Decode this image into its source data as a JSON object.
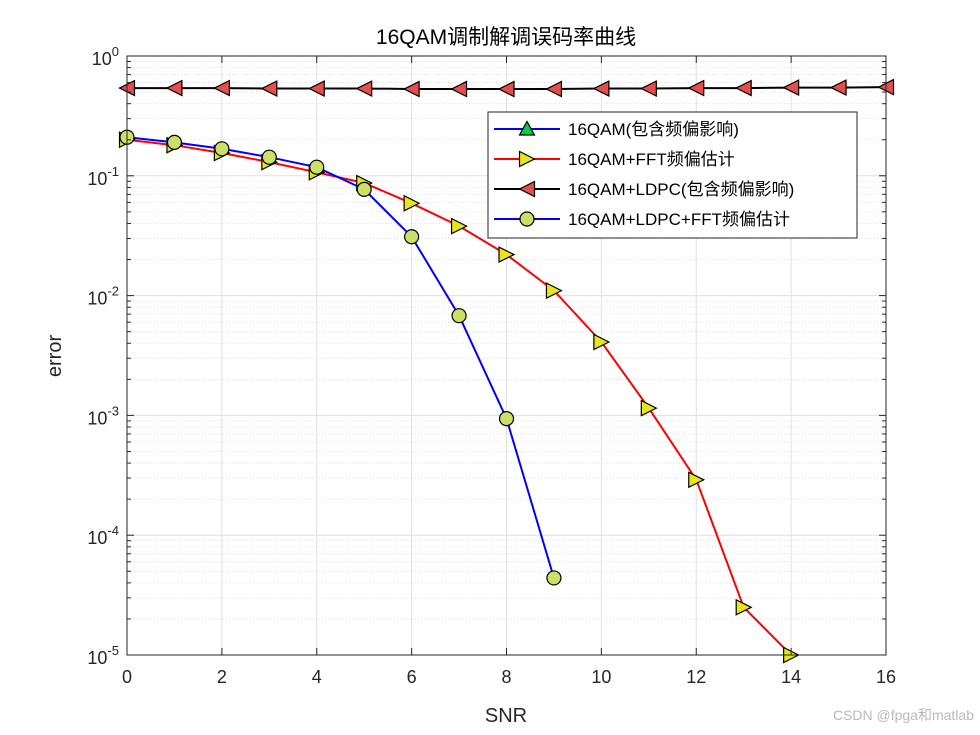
{
  "chart_data": {
    "type": "line",
    "title": "16QAM调制解调误码率曲线",
    "xlabel": "SNR",
    "ylabel": "error",
    "xscale": "linear",
    "yscale": "log",
    "xlim": [
      0,
      16
    ],
    "ylim": [
      1e-05,
      1
    ],
    "xticks": [
      0,
      2,
      4,
      6,
      8,
      10,
      12,
      14,
      16
    ],
    "yticks": [
      {
        "base": "10",
        "exp": "0",
        "value": 1
      },
      {
        "base": "10",
        "exp": "-1",
        "value": 0.1
      },
      {
        "base": "10",
        "exp": "-2",
        "value": 0.01
      },
      {
        "base": "10",
        "exp": "-3",
        "value": 0.001
      },
      {
        "base": "10",
        "exp": "-4",
        "value": 0.0001
      },
      {
        "base": "10",
        "exp": "-5",
        "value": 1e-05
      }
    ],
    "grid": true,
    "minor_grid": true,
    "legend_position": "top-right",
    "series": [
      {
        "name": "16QAM(包含频偏影响)",
        "color": "#0000ff",
        "marker": "triangle-up",
        "marker_fill": "#00cc44",
        "x": [],
        "y": []
      },
      {
        "name": "16QAM+FFT频偏估计",
        "color": "#ff0000",
        "marker": "triangle-right",
        "marker_fill": "#e6e61a",
        "x": [
          0,
          1,
          2,
          3,
          4,
          5,
          6,
          7,
          8,
          9,
          10,
          11,
          12,
          13,
          14
        ],
        "y": [
          0.2,
          0.18,
          0.155,
          0.13,
          0.107,
          0.087,
          0.059,
          0.038,
          0.022,
          0.011,
          0.0041,
          0.00115,
          0.00029,
          2.5e-05,
          1e-05
        ]
      },
      {
        "name": "16QAM+LDPC(包含频偏影响)",
        "color": "#000000",
        "marker": "triangle-left",
        "marker_fill": "#e64d4d",
        "x": [
          0,
          1,
          2,
          3,
          4,
          5,
          6,
          7,
          8,
          9,
          10,
          11,
          12,
          13,
          14,
          15,
          16
        ],
        "y": [
          0.54,
          0.54,
          0.54,
          0.535,
          0.535,
          0.535,
          0.53,
          0.53,
          0.53,
          0.53,
          0.535,
          0.535,
          0.54,
          0.54,
          0.545,
          0.545,
          0.55
        ]
      },
      {
        "name": "16QAM+LDPC+FFT频偏估计",
        "color": "#0000ff",
        "marker": "circle",
        "marker_fill": "#cce066",
        "x": [
          0,
          1,
          2,
          3,
          4,
          5,
          6,
          7,
          8,
          9
        ],
        "y": [
          0.21,
          0.19,
          0.168,
          0.143,
          0.118,
          0.077,
          0.031,
          0.0068,
          0.00094,
          4.4e-05
        ]
      }
    ]
  },
  "watermark": "CSDN @fpga和matlab"
}
